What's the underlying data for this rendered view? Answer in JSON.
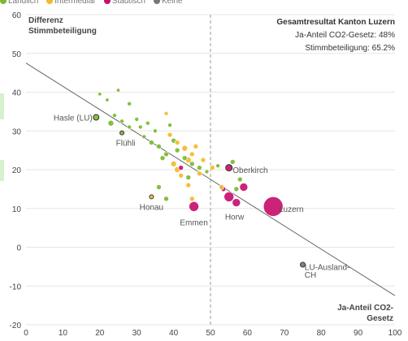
{
  "legend": [
    {
      "label": "Landlich",
      "color": "#7cb82f",
      "icon": "circle-icon"
    },
    {
      "label": "Intermediar",
      "color": "#f5b82e",
      "icon": "circle-icon"
    },
    {
      "label": "Stadtisch",
      "color": "#c8106e",
      "icon": "circle-icon"
    },
    {
      "label": "Keine",
      "color": "#777777",
      "icon": "circle-icon"
    }
  ],
  "chart_data": {
    "type": "scatter",
    "ylabel": "Differenz\nStimmbeteiligung",
    "xlabel": "Ja-Anteil CO2-\nGesetz",
    "xlim": [
      0,
      100
    ],
    "ylim": [
      -20,
      60
    ],
    "xticks": [
      "0",
      "10",
      "20",
      "30",
      "40",
      "50",
      "60",
      "70",
      "80",
      "90",
      "100"
    ],
    "yticks": [
      "-20",
      "-10",
      "0",
      "10",
      "20",
      "30",
      "40",
      "50",
      "60"
    ],
    "summary": {
      "title": "Gesamtresultat Kanton Luzern",
      "line1": "Ja-Anteil CO2-Gesetz: 48%",
      "line2": "Stimmbeteiligung: 65.2%"
    },
    "reference_x": 50,
    "trendline": {
      "x": [
        0,
        100
      ],
      "y": [
        47.5,
        -12.5
      ]
    },
    "grid": true,
    "colors": {
      "landlich": "#7cb82f",
      "intermediar": "#f5b82e",
      "stadtisch": "#c8106e",
      "keine": "#777777"
    },
    "labels": [
      {
        "text": "Hasle (LU)",
        "x": 18,
        "y": 33.5,
        "anchor": "end"
      },
      {
        "text": "Flühli",
        "x": 27,
        "y": 27,
        "anchor": "middle"
      },
      {
        "text": "Honau",
        "x": 34,
        "y": 10.5,
        "anchor": "middle"
      },
      {
        "text": "Emmen",
        "x": 45.5,
        "y": 6.5,
        "anchor": "middle"
      },
      {
        "text": "Horw",
        "x": 56.5,
        "y": 8,
        "anchor": "middle"
      },
      {
        "text": "Oberkirch",
        "x": 56,
        "y": 20,
        "anchor": "start"
      },
      {
        "text": "Luzern",
        "x": 68.5,
        "y": 10,
        "anchor": "start"
      },
      {
        "text": "LU-Ausland-",
        "x": 75.5,
        "y": -5,
        "anchor": "start"
      },
      {
        "text": "CH",
        "x": 75.5,
        "y": -7,
        "anchor": "start"
      }
    ],
    "points": [
      {
        "x": 19,
        "y": 33.5,
        "cat": "landlich",
        "r": 3.5,
        "ring": true
      },
      {
        "x": 26,
        "y": 29.5,
        "cat": "landlich",
        "r": 2.5,
        "ring": true
      },
      {
        "x": 34,
        "y": 13,
        "cat": "intermediar",
        "r": 2.5,
        "ring": true
      },
      {
        "x": 67,
        "y": 10.5,
        "cat": "stadtisch",
        "r": 12
      },
      {
        "x": 45.5,
        "y": 10.5,
        "cat": "stadtisch",
        "r": 6
      },
      {
        "x": 55,
        "y": 13,
        "cat": "stadtisch",
        "r": 6
      },
      {
        "x": 57,
        "y": 11.5,
        "cat": "stadtisch",
        "r": 5
      },
      {
        "x": 59,
        "y": 15.5,
        "cat": "stadtisch",
        "r": 5
      },
      {
        "x": 53.5,
        "y": 15,
        "cat": "stadtisch",
        "r": 3
      },
      {
        "x": 55,
        "y": 20.5,
        "cat": "stadtisch",
        "r": 4,
        "ring": true
      },
      {
        "x": 42,
        "y": 20.5,
        "cat": "stadtisch",
        "r": 3
      },
      {
        "x": 75,
        "y": -4.5,
        "cat": "keine",
        "r": 3,
        "ring": true
      },
      {
        "x": 25,
        "y": 40.5,
        "cat": "landlich",
        "r": 2.2
      },
      {
        "x": 28,
        "y": 37,
        "cat": "landlich",
        "r": 2.5
      },
      {
        "x": 22,
        "y": 38,
        "cat": "landlich",
        "r": 2.2
      },
      {
        "x": 20,
        "y": 39.5,
        "cat": "landlich",
        "r": 2.2
      },
      {
        "x": 24,
        "y": 34,
        "cat": "landlich",
        "r": 2.5
      },
      {
        "x": 23,
        "y": 32,
        "cat": "landlich",
        "r": 3.5
      },
      {
        "x": 26,
        "y": 32.5,
        "cat": "landlich",
        "r": 2.5
      },
      {
        "x": 28,
        "y": 31,
        "cat": "landlich",
        "r": 2.5
      },
      {
        "x": 30,
        "y": 33,
        "cat": "landlich",
        "r": 2.5
      },
      {
        "x": 31,
        "y": 31,
        "cat": "landlich",
        "r": 2.5
      },
      {
        "x": 33,
        "y": 32,
        "cat": "landlich",
        "r": 2.5
      },
      {
        "x": 35,
        "y": 30,
        "cat": "landlich",
        "r": 2.5
      },
      {
        "x": 32,
        "y": 28.5,
        "cat": "landlich",
        "r": 2.5
      },
      {
        "x": 34,
        "y": 27,
        "cat": "landlich",
        "r": 3
      },
      {
        "x": 36,
        "y": 26,
        "cat": "landlich",
        "r": 3
      },
      {
        "x": 38,
        "y": 24,
        "cat": "landlich",
        "r": 3
      },
      {
        "x": 37,
        "y": 23,
        "cat": "landlich",
        "r": 3
      },
      {
        "x": 39,
        "y": 31.5,
        "cat": "landlich",
        "r": 2.5
      },
      {
        "x": 40,
        "y": 27.5,
        "cat": "landlich",
        "r": 3
      },
      {
        "x": 41,
        "y": 25,
        "cat": "landlich",
        "r": 3
      },
      {
        "x": 43,
        "y": 23,
        "cat": "landlich",
        "r": 3
      },
      {
        "x": 45,
        "y": 21.5,
        "cat": "landlich",
        "r": 3
      },
      {
        "x": 47,
        "y": 20.5,
        "cat": "landlich",
        "r": 3
      },
      {
        "x": 49,
        "y": 19.5,
        "cat": "landlich",
        "r": 2.5
      },
      {
        "x": 52,
        "y": 21,
        "cat": "landlich",
        "r": 2.5
      },
      {
        "x": 56,
        "y": 22,
        "cat": "landlich",
        "r": 3
      },
      {
        "x": 57,
        "y": 15,
        "cat": "landlich",
        "r": 3
      },
      {
        "x": 58,
        "y": 17.5,
        "cat": "landlich",
        "r": 3
      },
      {
        "x": 36,
        "y": 15.5,
        "cat": "landlich",
        "r": 3
      },
      {
        "x": 38,
        "y": 12.5,
        "cat": "landlich",
        "r": 3
      },
      {
        "x": 44,
        "y": 18,
        "cat": "landlich",
        "r": 3
      },
      {
        "x": 38,
        "y": 34.5,
        "cat": "intermediar",
        "r": 2.5
      },
      {
        "x": 41,
        "y": 27,
        "cat": "intermediar",
        "r": 3
      },
      {
        "x": 43,
        "y": 25.5,
        "cat": "intermediar",
        "r": 3.5
      },
      {
        "x": 40,
        "y": 21.5,
        "cat": "intermediar",
        "r": 3.5
      },
      {
        "x": 41,
        "y": 20,
        "cat": "intermediar",
        "r": 3.5
      },
      {
        "x": 42,
        "y": 18.5,
        "cat": "intermediar",
        "r": 3
      },
      {
        "x": 44,
        "y": 22.5,
        "cat": "intermediar",
        "r": 3.5
      },
      {
        "x": 45,
        "y": 24,
        "cat": "intermediar",
        "r": 3
      },
      {
        "x": 46,
        "y": 26,
        "cat": "intermediar",
        "r": 3
      },
      {
        "x": 47,
        "y": 19,
        "cat": "intermediar",
        "r": 3
      },
      {
        "x": 48,
        "y": 22.5,
        "cat": "intermediar",
        "r": 3
      },
      {
        "x": 44,
        "y": 16,
        "cat": "intermediar",
        "r": 3
      },
      {
        "x": 45,
        "y": 12.5,
        "cat": "intermediar",
        "r": 3
      },
      {
        "x": 50.5,
        "y": 20.5,
        "cat": "intermediar",
        "r": 3
      },
      {
        "x": 53,
        "y": 15.5,
        "cat": "intermediar",
        "r": 3
      },
      {
        "x": 39,
        "y": 29,
        "cat": "intermediar",
        "r": 3
      }
    ]
  }
}
